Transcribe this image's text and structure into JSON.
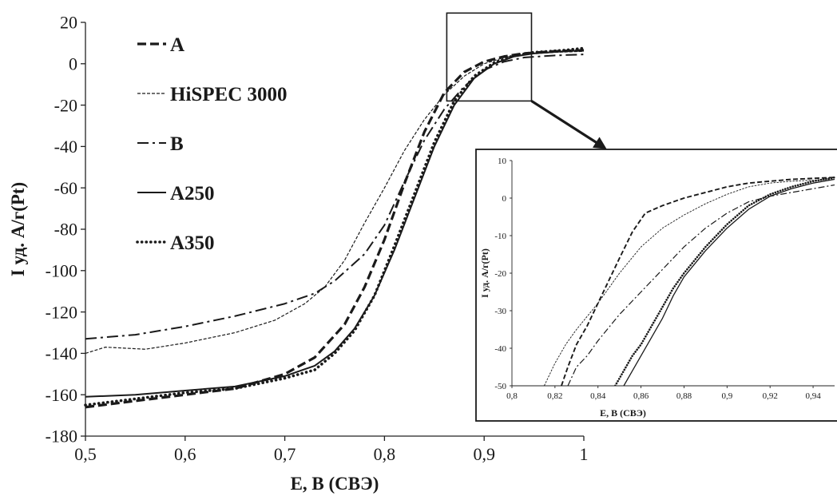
{
  "chart_data": [
    {
      "type": "line",
      "title": "",
      "xlabel": "E, В (СВЭ)",
      "ylabel": "I уд. А/г(Pt)",
      "xlim": [
        0.5,
        1.0
      ],
      "ylim": [
        -180,
        20
      ],
      "x_ticks": [
        "0,5",
        "0,6",
        "0,7",
        "0,8",
        "0,9",
        "1"
      ],
      "y_ticks": [
        "20",
        "0",
        "-20",
        "-40",
        "-60",
        "-80",
        "-100",
        "-120",
        "-140",
        "-160",
        "-180"
      ],
      "grid": false,
      "legend": "top-left",
      "series": [
        {
          "name": "A",
          "style": "dashed-bold",
          "points": [
            [
              0.5,
              -166
            ],
            [
              0.55,
              -163
            ],
            [
              0.6,
              -160
            ],
            [
              0.65,
              -157
            ],
            [
              0.7,
              -150
            ],
            [
              0.73,
              -142
            ],
            [
              0.76,
              -126
            ],
            [
              0.78,
              -108
            ],
            [
              0.8,
              -85
            ],
            [
              0.82,
              -58
            ],
            [
              0.84,
              -33
            ],
            [
              0.86,
              -14
            ],
            [
              0.88,
              -4
            ],
            [
              0.9,
              1
            ],
            [
              0.92,
              3.5
            ],
            [
              0.94,
              5
            ],
            [
              0.97,
              6
            ],
            [
              1.0,
              6.5
            ]
          ]
        },
        {
          "name": "HiSPEC 3000",
          "style": "thin-dashed",
          "points": [
            [
              0.5,
              -140
            ],
            [
              0.52,
              -137
            ],
            [
              0.56,
              -138
            ],
            [
              0.6,
              -135
            ],
            [
              0.65,
              -130
            ],
            [
              0.69,
              -124
            ],
            [
              0.72,
              -116
            ],
            [
              0.74,
              -108
            ],
            [
              0.76,
              -95
            ],
            [
              0.78,
              -77
            ],
            [
              0.8,
              -60
            ],
            [
              0.82,
              -42
            ],
            [
              0.84,
              -27
            ],
            [
              0.86,
              -15
            ],
            [
              0.88,
              -6
            ],
            [
              0.9,
              0
            ],
            [
              0.92,
              3
            ],
            [
              0.94,
              4.5
            ],
            [
              0.97,
              5.5
            ],
            [
              1.0,
              6
            ]
          ]
        },
        {
          "name": "B",
          "style": "dash-dot",
          "points": [
            [
              0.5,
              -133
            ],
            [
              0.55,
              -131
            ],
            [
              0.6,
              -127
            ],
            [
              0.65,
              -122
            ],
            [
              0.7,
              -116
            ],
            [
              0.73,
              -111
            ],
            [
              0.75,
              -105
            ],
            [
              0.78,
              -92
            ],
            [
              0.8,
              -78
            ],
            [
              0.82,
              -57
            ],
            [
              0.84,
              -37
            ],
            [
              0.86,
              -22
            ],
            [
              0.88,
              -11
            ],
            [
              0.9,
              -3
            ],
            [
              0.92,
              1
            ],
            [
              0.94,
              3
            ],
            [
              0.97,
              4
            ],
            [
              1.0,
              4.5
            ]
          ]
        },
        {
          "name": "A250",
          "style": "solid",
          "points": [
            [
              0.5,
              -161
            ],
            [
              0.55,
              -160
            ],
            [
              0.6,
              -158
            ],
            [
              0.65,
              -156
            ],
            [
              0.7,
              -151
            ],
            [
              0.73,
              -146
            ],
            [
              0.75,
              -139
            ],
            [
              0.77,
              -128
            ],
            [
              0.79,
              -112
            ],
            [
              0.81,
              -90
            ],
            [
              0.83,
              -65
            ],
            [
              0.85,
              -40
            ],
            [
              0.87,
              -20
            ],
            [
              0.89,
              -7
            ],
            [
              0.91,
              0
            ],
            [
              0.93,
              3.5
            ],
            [
              0.95,
              5
            ],
            [
              0.98,
              6
            ],
            [
              1.0,
              6.5
            ]
          ]
        },
        {
          "name": "A350",
          "style": "dotted",
          "points": [
            [
              0.5,
              -165
            ],
            [
              0.55,
              -162
            ],
            [
              0.6,
              -159
            ],
            [
              0.65,
              -157
            ],
            [
              0.7,
              -152
            ],
            [
              0.73,
              -148
            ],
            [
              0.75,
              -140
            ],
            [
              0.77,
              -129
            ],
            [
              0.79,
              -112
            ],
            [
              0.81,
              -88
            ],
            [
              0.83,
              -63
            ],
            [
              0.85,
              -38
            ],
            [
              0.87,
              -18
            ],
            [
              0.89,
              -6
            ],
            [
              0.91,
              0.5
            ],
            [
              0.93,
              4
            ],
            [
              0.95,
              5.5
            ],
            [
              0.98,
              6.5
            ],
            [
              1.0,
              7.5
            ]
          ]
        }
      ]
    },
    {
      "type": "line",
      "title": "",
      "xlabel": "E, В (СВЭ)",
      "ylabel": "I уд. А/г(Pt)",
      "xlim": [
        0.8,
        0.95
      ],
      "ylim": [
        -50,
        10
      ],
      "x_ticks": [
        "0,8",
        "0,82",
        "0,84",
        "0,86",
        "0,88",
        "0,9",
        "0,92",
        "0,94"
      ],
      "y_ticks": [
        "10",
        "0",
        "-10",
        "-20",
        "-30",
        "-40",
        "-50"
      ],
      "grid": false,
      "series": [
        {
          "name": "A",
          "style": "dashed-bold",
          "points": [
            [
              0.823,
              -50
            ],
            [
              0.826,
              -45
            ],
            [
              0.83,
              -39
            ],
            [
              0.835,
              -34
            ],
            [
              0.84,
              -28
            ],
            [
              0.845,
              -22
            ],
            [
              0.85,
              -16
            ],
            [
              0.856,
              -9
            ],
            [
              0.862,
              -4
            ],
            [
              0.87,
              -2
            ],
            [
              0.88,
              0
            ],
            [
              0.89,
              1.5
            ],
            [
              0.9,
              3
            ],
            [
              0.91,
              4
            ],
            [
              0.92,
              4.5
            ],
            [
              0.93,
              5
            ],
            [
              0.95,
              5.5
            ]
          ]
        },
        {
          "name": "HiSPEC 3000",
          "style": "thin-dashed",
          "points": [
            [
              0.815,
              -50
            ],
            [
              0.82,
              -44
            ],
            [
              0.825,
              -39
            ],
            [
              0.83,
              -35
            ],
            [
              0.84,
              -28
            ],
            [
              0.85,
              -20
            ],
            [
              0.86,
              -13
            ],
            [
              0.87,
              -8
            ],
            [
              0.88,
              -4.5
            ],
            [
              0.89,
              -1.5
            ],
            [
              0.9,
              1
            ],
            [
              0.91,
              3
            ],
            [
              0.92,
              4
            ],
            [
              0.93,
              4.5
            ],
            [
              0.95,
              5
            ]
          ]
        },
        {
          "name": "B",
          "style": "dash-dot",
          "points": [
            [
              0.826,
              -50
            ],
            [
              0.83,
              -45
            ],
            [
              0.835,
              -42
            ],
            [
              0.84,
              -38
            ],
            [
              0.85,
              -31
            ],
            [
              0.86,
              -25
            ],
            [
              0.87,
              -19
            ],
            [
              0.88,
              -13
            ],
            [
              0.89,
              -8
            ],
            [
              0.9,
              -4
            ],
            [
              0.91,
              -1
            ],
            [
              0.92,
              0.5
            ],
            [
              0.93,
              1.5
            ],
            [
              0.94,
              2.5
            ],
            [
              0.95,
              3.5
            ]
          ]
        },
        {
          "name": "A250",
          "style": "solid",
          "points": [
            [
              0.852,
              -50
            ],
            [
              0.856,
              -46
            ],
            [
              0.86,
              -42
            ],
            [
              0.865,
              -37
            ],
            [
              0.87,
              -32
            ],
            [
              0.875,
              -26
            ],
            [
              0.88,
              -21
            ],
            [
              0.89,
              -14
            ],
            [
              0.9,
              -8
            ],
            [
              0.91,
              -3
            ],
            [
              0.92,
              0.5
            ],
            [
              0.93,
              2.5
            ],
            [
              0.94,
              4
            ],
            [
              0.95,
              5
            ]
          ]
        },
        {
          "name": "A350",
          "style": "dotted",
          "points": [
            [
              0.848,
              -50
            ],
            [
              0.852,
              -46
            ],
            [
              0.856,
              -42
            ],
            [
              0.86,
              -39
            ],
            [
              0.865,
              -34
            ],
            [
              0.87,
              -29
            ],
            [
              0.875,
              -24
            ],
            [
              0.88,
              -20
            ],
            [
              0.89,
              -13
            ],
            [
              0.9,
              -7
            ],
            [
              0.91,
              -2
            ],
            [
              0.92,
              1
            ],
            [
              0.93,
              3
            ],
            [
              0.94,
              4.5
            ],
            [
              0.95,
              5.5
            ]
          ]
        }
      ]
    }
  ]
}
